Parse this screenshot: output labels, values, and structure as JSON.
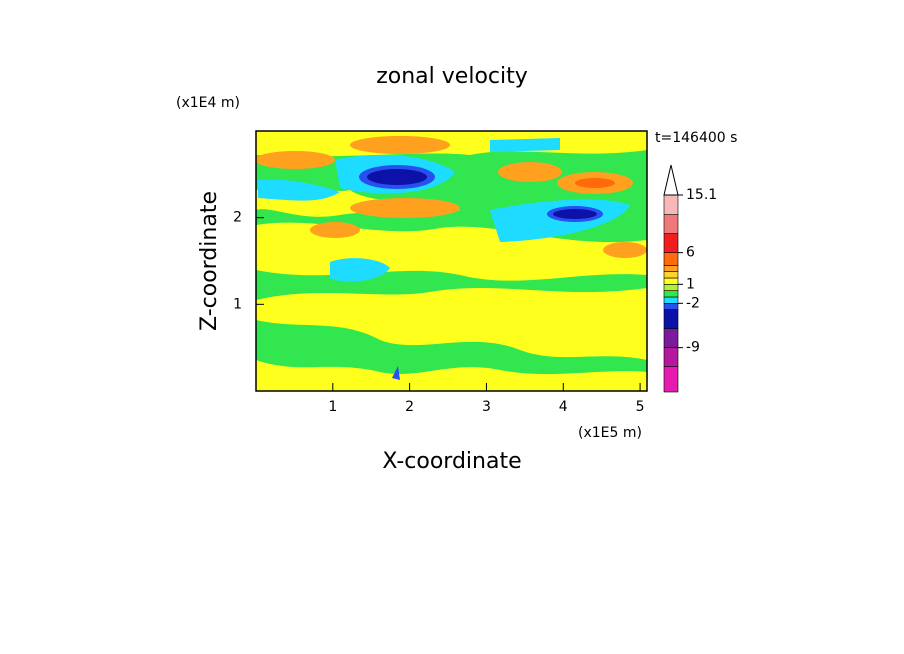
{
  "chart_data": {
    "type": "contour",
    "title": "zonal velocity",
    "xlabel": "X-coordinate",
    "ylabel": "Z-coordinate",
    "xunit": "(x1E5 m)",
    "yunit": "(x1E4 m)",
    "annotation": "t=146400 s",
    "xlim": [
      0,
      5.09
    ],
    "xticks": [
      1,
      2,
      3,
      4,
      5
    ],
    "ylim": [
      0,
      3
    ],
    "yticks": [
      1,
      2
    ],
    "colorbar": {
      "levels": [
        -16,
        -12,
        -9,
        -6,
        -3,
        -2,
        -1,
        0,
        1,
        2,
        3,
        4,
        6,
        9,
        12,
        15.1
      ],
      "colors": [
        "#e61cb0",
        "#b4189e",
        "#7c1a9c",
        "#0c12a8",
        "#2850f0",
        "#1edcff",
        "#32e650",
        "#b4f032",
        "#ffff1e",
        "#ffd232",
        "#ffa01e",
        "#ff6a0a",
        "#f01e1e",
        "#f07878",
        "#f8b8b8"
      ],
      "ticks": [
        -9,
        -2,
        1,
        6,
        15.1
      ]
    }
  }
}
